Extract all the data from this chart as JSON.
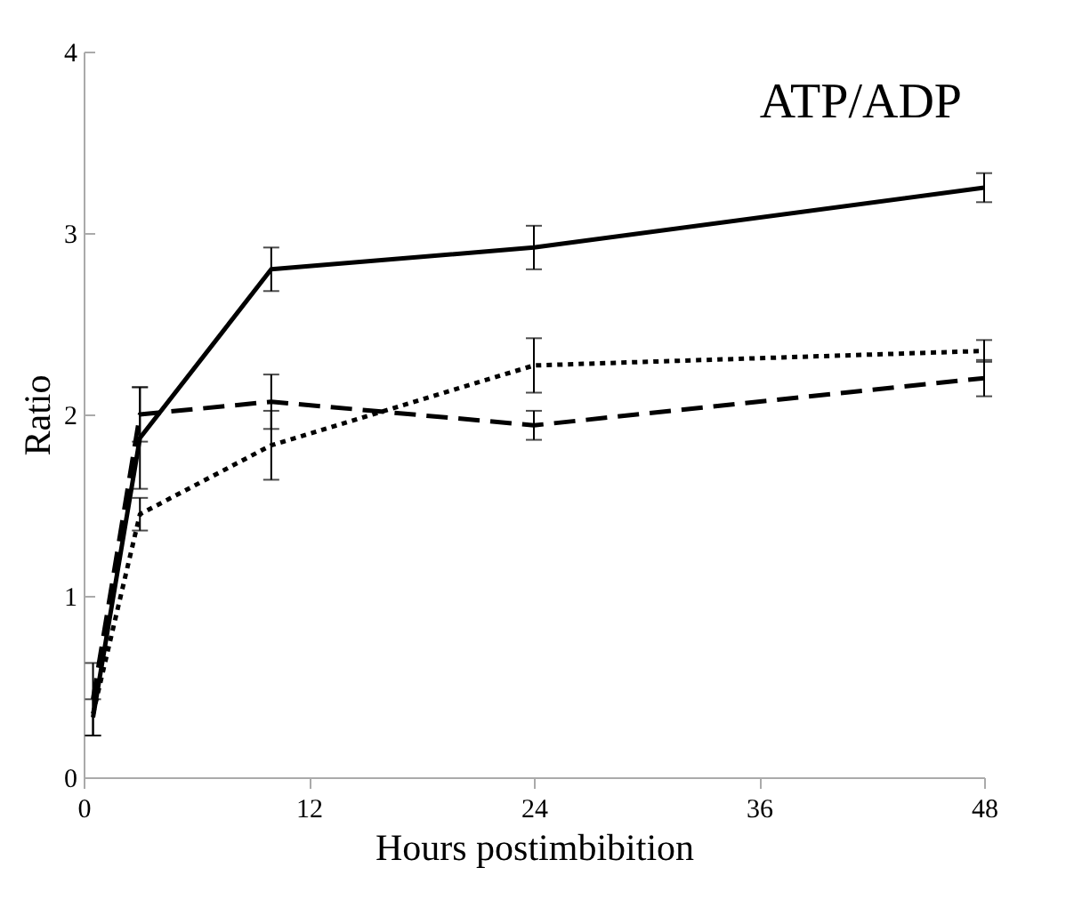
{
  "chart_data": {
    "type": "line",
    "title": "ATP/ADP",
    "xlabel": "Hours postimbibition",
    "ylabel": "Ratio",
    "x": [
      0.5,
      3,
      10,
      24,
      48
    ],
    "series": [
      {
        "color": "#000000",
        "line_style": "solid",
        "values": [
          0.33,
          1.87,
          2.8,
          2.92,
          3.25
        ],
        "errors": [
          0.1,
          0.28,
          0.12,
          0.12,
          0.08
        ]
      },
      {
        "color": "#000000",
        "line_style": "dashed",
        "values": [
          0.43,
          2.0,
          2.07,
          1.94,
          2.2
        ],
        "errors": [
          0.2,
          0.15,
          0.15,
          0.08,
          0.1
        ]
      },
      {
        "color": "#000000",
        "line_style": "dotted",
        "values": [
          0.35,
          1.45,
          1.83,
          2.27,
          2.35
        ],
        "errors": [
          null,
          0.09,
          0.19,
          0.15,
          0.06
        ]
      }
    ],
    "xlim": [
      0,
      48
    ],
    "xticks": [
      0,
      12,
      24,
      36,
      48
    ],
    "ylim": [
      0,
      4
    ],
    "yticks": [
      0,
      1,
      2,
      3,
      4
    ],
    "grid": false,
    "marker": "none"
  }
}
